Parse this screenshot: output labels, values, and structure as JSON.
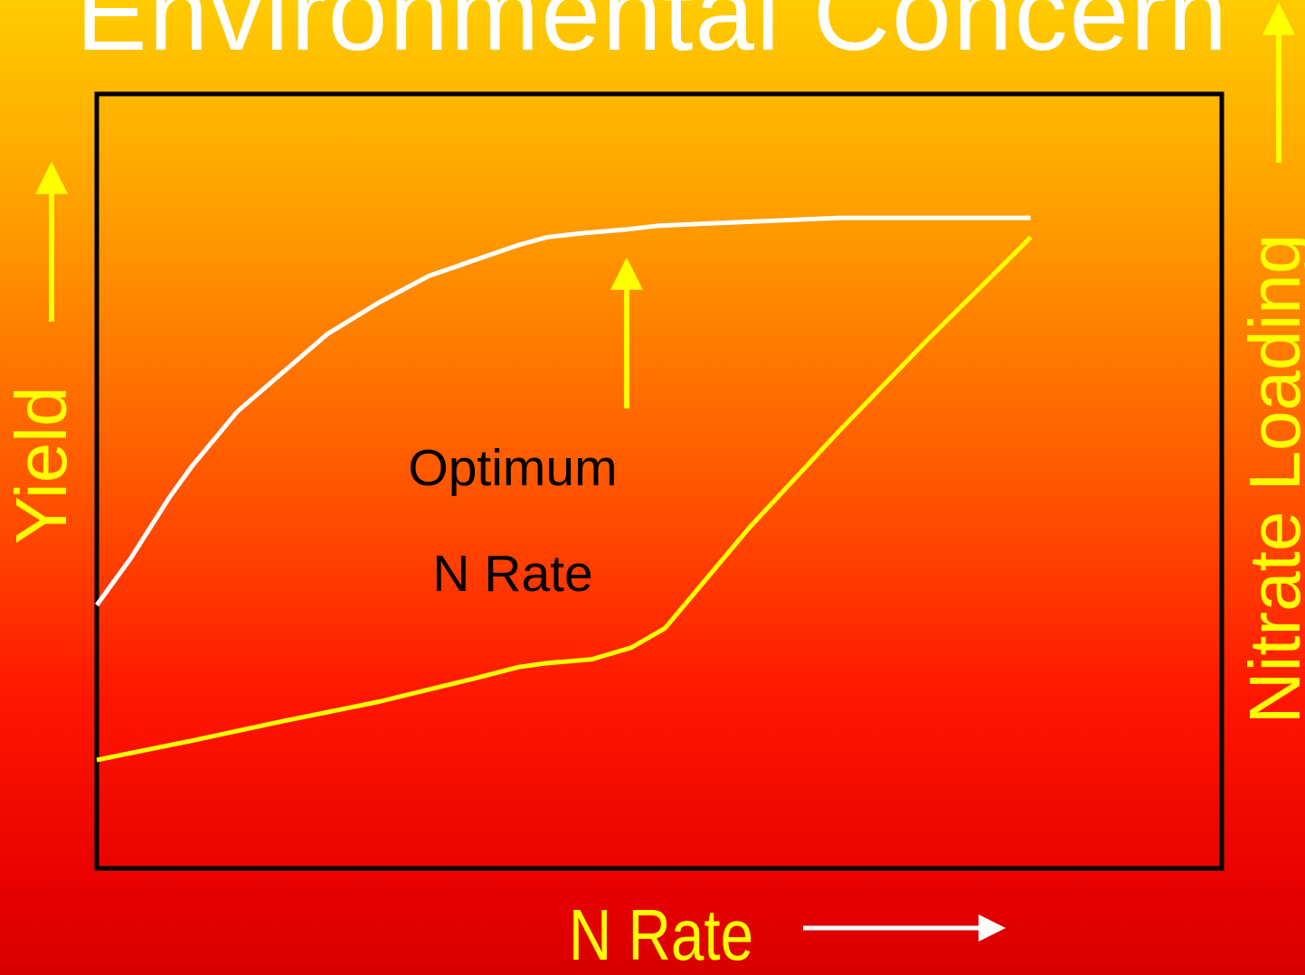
{
  "slide": {
    "title": "Environmental Concern"
  },
  "colors": {
    "background_top": "#ffcc00",
    "background_bottom": "#d90000",
    "yield_curve": "#ffffff",
    "nitrate_curve": "#ffff00",
    "labels": "#ffff00",
    "annotation": "#000000",
    "frame": "#000000"
  },
  "icons": {
    "y_arrow": "arrow-up-icon",
    "x_arrow": "arrow-right-icon",
    "right_arrow": "arrow-up-icon",
    "annotation_arrow": "arrow-up-icon"
  },
  "chart_data": {
    "type": "line",
    "title": "Environmental Concern",
    "xlabel": "N Rate",
    "ylabel": "Yield",
    "y2label": "Nitrate Loading",
    "grid": false,
    "legend": "none",
    "annotation": {
      "line1": "Optimum",
      "line2": "N Rate",
      "x": 47.1
    },
    "series": [
      {
        "name": "Yield",
        "x": [
          0,
          3,
          6.5,
          8.5,
          12.5,
          16.5,
          20.5,
          25,
          29.5,
          33.5,
          37.5,
          40,
          43,
          47,
          50,
          58,
          66,
          74,
          82,
          83
        ],
        "y": [
          34,
          40,
          48,
          52,
          59,
          64,
          69,
          73,
          76.5,
          78.5,
          80.5,
          81.5,
          82,
          82.5,
          83,
          83.5,
          84,
          84,
          84,
          84
        ]
      },
      {
        "name": "Nitrate Loading",
        "x": [
          0,
          8.5,
          16.5,
          25,
          33.5,
          37.5,
          40,
          44,
          47.5,
          50.5,
          58,
          66,
          74,
          82,
          83
        ],
        "y": [
          14,
          16.5,
          19,
          21.5,
          24.5,
          26,
          26.5,
          27,
          28.5,
          31,
          44,
          56.5,
          68.5,
          80,
          81.5
        ]
      }
    ],
    "xlim": [
      0,
      100
    ],
    "ylim": [
      0,
      100
    ]
  }
}
